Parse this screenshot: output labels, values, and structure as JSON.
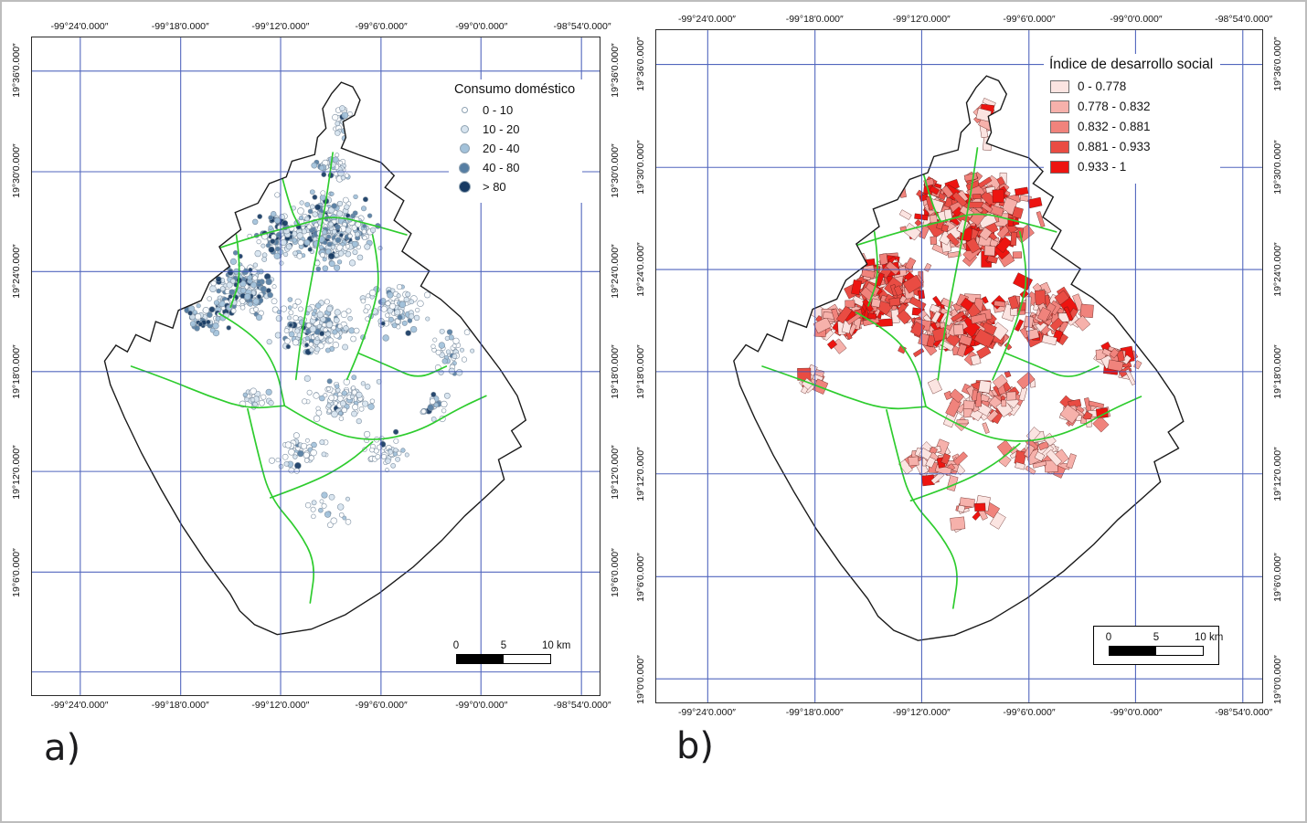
{
  "colors": {
    "grid_line": "#3a51b5",
    "city_boundary": "#1a1a1a",
    "district_boundary": "#2ecc2e"
  },
  "panels": {
    "a": {
      "label": "a)",
      "legend": {
        "title": "Consumo doméstico",
        "items": [
          {
            "label": "0 - 10",
            "color": "#fdfeff",
            "size": 7
          },
          {
            "label": "10 - 20",
            "color": "#d7e4ef",
            "size": 9
          },
          {
            "label": "20 - 40",
            "color": "#a3c2da",
            "size": 11
          },
          {
            "label": "40 - 80",
            "color": "#567ea3",
            "size": 12
          },
          {
            "label": "> 80",
            "color": "#173a63",
            "size": 13
          }
        ]
      },
      "x_labels": [
        "-99°24′0.000″",
        "-99°18′0.000″",
        "-99°12′0.000″",
        "-99°6′0.000″",
        "-99°0′0.000″",
        "-98°54′0.000″"
      ],
      "y_labels": [
        "19°36′0.000″",
        "19°30′0.000″",
        "19°24′0.000″",
        "19°18′0.000″",
        "19°12′0.000″",
        "19°6′0.000″"
      ],
      "scalebar": {
        "labels": [
          "0",
          "5",
          "10 km"
        ]
      }
    },
    "b": {
      "label": "b)",
      "legend": {
        "title": "Índice de desarrollo social",
        "items": [
          {
            "label": "0 - 0.778",
            "color": "#fbe4e1"
          },
          {
            "label": "0.778 - 0.832",
            "color": "#f6b1ab"
          },
          {
            "label": "0.832 - 0.881",
            "color": "#f0837c"
          },
          {
            "label": "0.881 - 0.933",
            "color": "#e94c43"
          },
          {
            "label": "0.933 - 1",
            "color": "#ed1410"
          }
        ]
      },
      "x_labels": [
        "-99°24′0.000″",
        "-99°18′0.000″",
        "-99°12′0.000″",
        "-99°6′0.000″",
        "-99°0′0.000″",
        "-98°54′0.000″"
      ],
      "y_labels": [
        "19°36′0.000″",
        "19°30′0.000″",
        "19°24′0.000″",
        "19°18′0.000″",
        "19°12′0.000″",
        "19°6′0.000″",
        "19°0′0.000″"
      ],
      "scalebar": {
        "labels": [
          "0",
          "5",
          "10 km"
        ]
      }
    }
  }
}
